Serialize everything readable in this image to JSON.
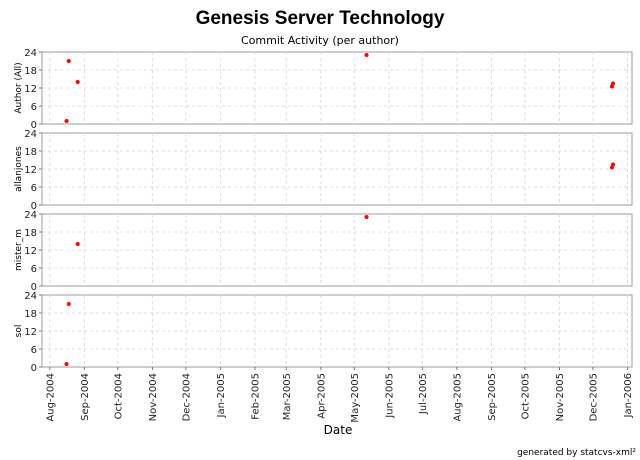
{
  "chart_data": {
    "type": "scatter",
    "title": "Genesis Server Technology",
    "subtitle": "Commit Activity (per author)",
    "xlabel": "Date",
    "footer": "generated by statcvs-xml²",
    "x_ticks": [
      "Aug-2004",
      "Sep-2004",
      "Oct-2004",
      "Nov-2004",
      "Dec-2004",
      "Jan-2005",
      "Feb-2005",
      "Mar-2005",
      "Apr-2005",
      "May-2005",
      "Jun-2005",
      "Jul-2005",
      "Aug-2005",
      "Sep-2005",
      "Oct-2005",
      "Nov-2005",
      "Dec-2005",
      "Jan-2006"
    ],
    "xlim": [
      "2004-07-25",
      "2006-01-05"
    ],
    "ylim": [
      0,
      24
    ],
    "y_ticks": [
      0,
      6,
      12,
      18,
      24
    ],
    "grid": true,
    "point_color": "#ff0000",
    "panels": [
      {
        "ylabel": "Author (All)",
        "points": [
          {
            "x": "2004-08-16",
            "y": 1
          },
          {
            "x": "2004-08-18",
            "y": 21
          },
          {
            "x": "2004-08-26",
            "y": 14
          },
          {
            "x": "2005-05-12",
            "y": 23
          },
          {
            "x": "2005-12-18",
            "y": 12.5
          },
          {
            "x": "2005-12-19",
            "y": 13.5
          }
        ]
      },
      {
        "ylabel": "allanjones",
        "points": [
          {
            "x": "2005-12-18",
            "y": 12.5
          },
          {
            "x": "2005-12-19",
            "y": 13.5
          }
        ]
      },
      {
        "ylabel": "mister_m",
        "points": [
          {
            "x": "2004-08-26",
            "y": 14
          },
          {
            "x": "2005-05-12",
            "y": 23
          }
        ]
      },
      {
        "ylabel": "sol",
        "points": [
          {
            "x": "2004-08-16",
            "y": 1
          },
          {
            "x": "2004-08-18",
            "y": 21
          }
        ]
      }
    ]
  }
}
